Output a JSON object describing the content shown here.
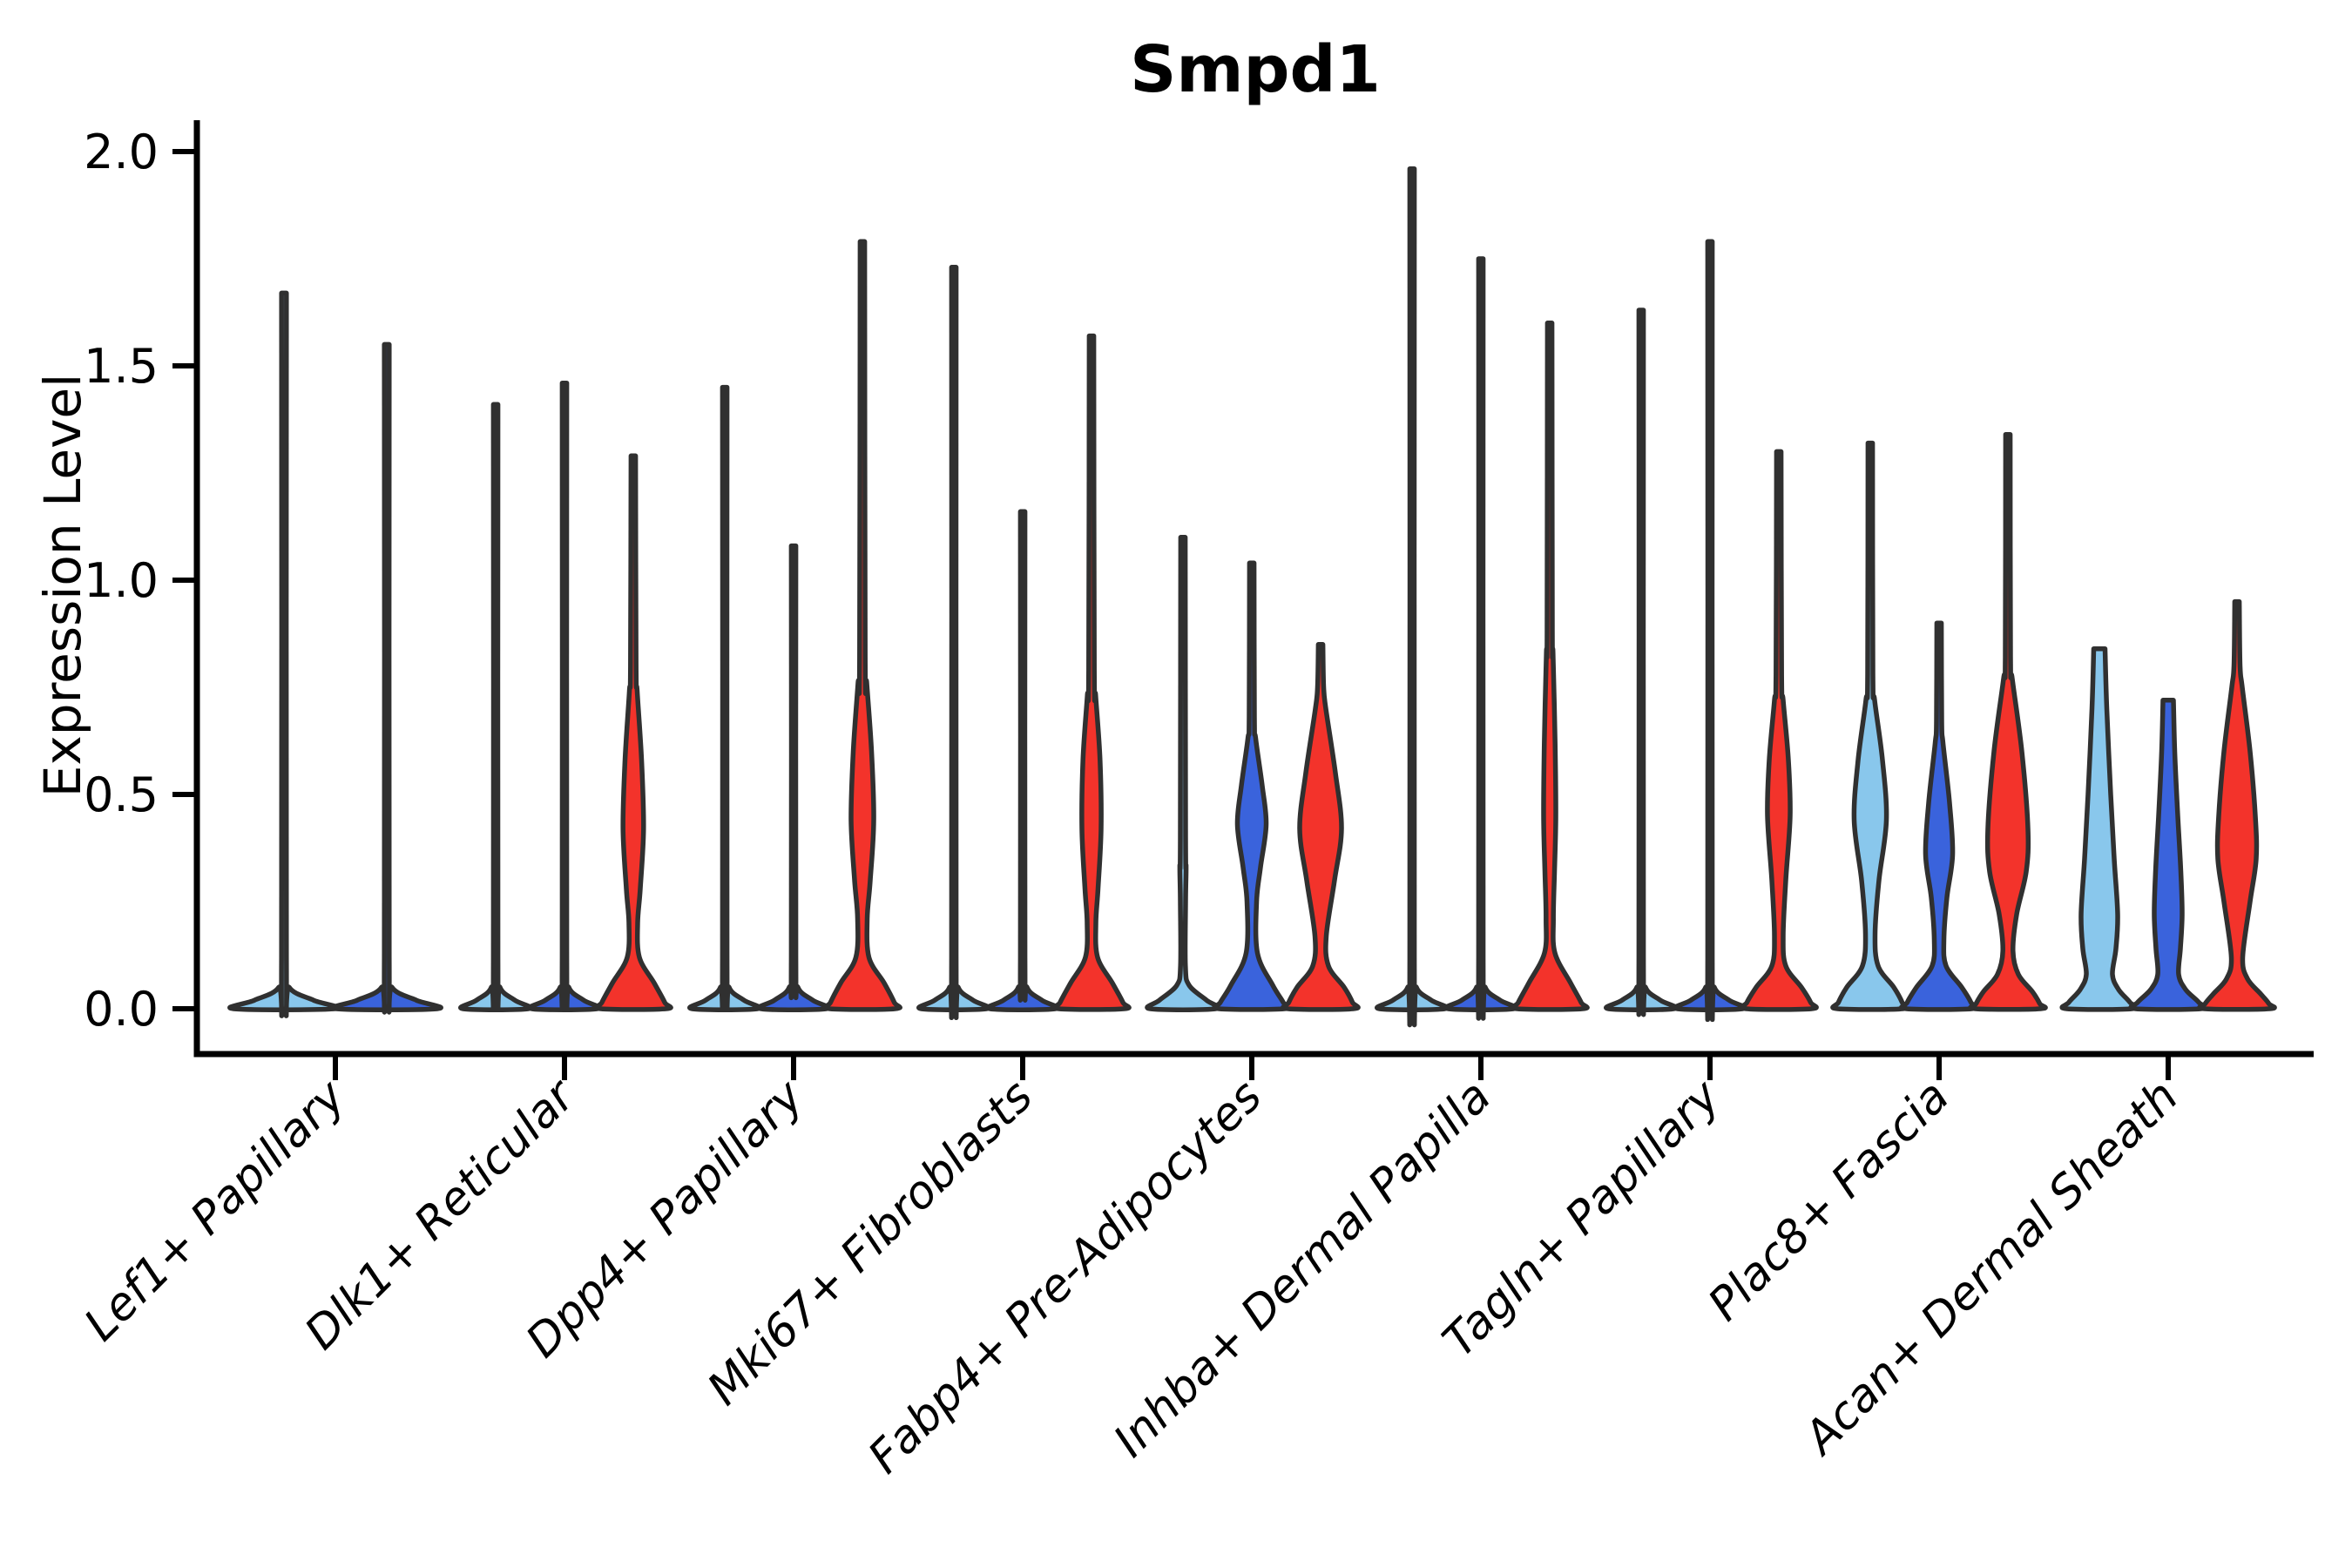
{
  "chart_data": {
    "type": "violin",
    "title": "Smpd1",
    "ylabel": "Expression Level",
    "ylim": [
      0.0,
      2.05
    ],
    "yticks": [
      0.0,
      0.5,
      1.0,
      1.5,
      2.0
    ],
    "ytick_labels": [
      "0.0",
      "0.5",
      "1.0",
      "1.5",
      "2.0"
    ],
    "grid": "off",
    "legend": "none",
    "categories": [
      "Lef1+ Papillary",
      "Dlk1+ Reticular",
      "Dpp4+ Papillary",
      "Mki67+ Fibroblasts",
      "Fabp4+ Pre-Adipocytes",
      "Inhba+ Dermal Papilla",
      "Tagln+ Papillary",
      "Plac8+ Fascia",
      "Acan+ Dermal Sheath"
    ],
    "split_colors": {
      "light-blue": "#89C7EC",
      "blue": "#3A63DC",
      "red": "#F3332B"
    },
    "outline_color": "#303030",
    "axis_color": "#000000",
    "violins": [
      {
        "cat": 0,
        "split": "light-blue",
        "max": 1.67,
        "profile": [
          [
            1.67,
            2.8
          ],
          [
            0.12,
            2.8
          ],
          [
            0.05,
            6
          ],
          [
            0.02,
            34
          ],
          [
            0,
            58
          ]
        ]
      },
      {
        "cat": 0,
        "split": "blue",
        "max": 1.55,
        "profile": [
          [
            1.55,
            2.8
          ],
          [
            0.12,
            2.8
          ],
          [
            0.05,
            6
          ],
          [
            0.02,
            34
          ],
          [
            0,
            58
          ]
        ]
      },
      {
        "cat": 1,
        "split": "light-blue",
        "max": 1.41,
        "profile": [
          [
            1.41,
            2.6
          ],
          [
            0.12,
            2.6
          ],
          [
            0.05,
            5
          ],
          [
            0.02,
            22
          ],
          [
            0,
            37.5
          ]
        ]
      },
      {
        "cat": 1,
        "split": "blue",
        "max": 1.46,
        "profile": [
          [
            1.46,
            2.6
          ],
          [
            0.12,
            2.6
          ],
          [
            0.05,
            5
          ],
          [
            0.02,
            22
          ],
          [
            0,
            37.5
          ]
        ]
      },
      {
        "cat": 1,
        "split": "red",
        "max": 1.29,
        "profile": [
          [
            1.29,
            2.6
          ],
          [
            0.8,
            3.2
          ],
          [
            0.74,
            4.5
          ],
          [
            0.58,
            9.5
          ],
          [
            0.42,
            11.8
          ],
          [
            0.28,
            8
          ],
          [
            0.2,
            5
          ],
          [
            0.12,
            7
          ],
          [
            0.06,
            24
          ],
          [
            0.015,
            36
          ],
          [
            0,
            37.5
          ]
        ]
      },
      {
        "cat": 2,
        "split": "light-blue",
        "max": 1.45,
        "profile": [
          [
            1.45,
            2.6
          ],
          [
            0.12,
            2.6
          ],
          [
            0.05,
            5
          ],
          [
            0.02,
            22
          ],
          [
            0,
            37.5
          ]
        ]
      },
      {
        "cat": 2,
        "split": "blue",
        "max": 1.08,
        "profile": [
          [
            1.08,
            2.6
          ],
          [
            0.12,
            2.6
          ],
          [
            0.05,
            5
          ],
          [
            0.02,
            22
          ],
          [
            0,
            37.5
          ]
        ]
      },
      {
        "cat": 2,
        "split": "red",
        "max": 1.79,
        "profile": [
          [
            1.79,
            2.6
          ],
          [
            0.82,
            3.2
          ],
          [
            0.76,
            5
          ],
          [
            0.6,
            10.5
          ],
          [
            0.44,
            13
          ],
          [
            0.3,
            9
          ],
          [
            0.21,
            5.5
          ],
          [
            0.12,
            7.5
          ],
          [
            0.06,
            25
          ],
          [
            0.015,
            36.5
          ],
          [
            0,
            37.5
          ]
        ]
      },
      {
        "cat": 3,
        "split": "light-blue",
        "max": 1.73,
        "profile": [
          [
            1.73,
            2.6
          ],
          [
            0.12,
            2.6
          ],
          [
            0.05,
            5
          ],
          [
            0.02,
            22
          ],
          [
            0,
            37.5
          ]
        ]
      },
      {
        "cat": 3,
        "split": "blue",
        "max": 1.16,
        "profile": [
          [
            1.16,
            2.6
          ],
          [
            0.12,
            2.6
          ],
          [
            0.05,
            5
          ],
          [
            0.02,
            22
          ],
          [
            0,
            37.5
          ]
        ]
      },
      {
        "cat": 3,
        "split": "red",
        "max": 1.57,
        "profile": [
          [
            1.57,
            2.6
          ],
          [
            0.79,
            3.2
          ],
          [
            0.73,
            4.8
          ],
          [
            0.58,
            9.8
          ],
          [
            0.42,
            11
          ],
          [
            0.28,
            7.5
          ],
          [
            0.2,
            5
          ],
          [
            0.12,
            7
          ],
          [
            0.06,
            24
          ],
          [
            0.015,
            36
          ],
          [
            0,
            37.5
          ]
        ]
      },
      {
        "cat": 4,
        "split": "light-blue",
        "max": 1.1,
        "profile": [
          [
            1.1,
            2.6
          ],
          [
            0.4,
            3.0
          ],
          [
            0.33,
            3.6
          ],
          [
            0.25,
            3.0
          ],
          [
            0.1,
            2.8
          ],
          [
            0.055,
            7
          ],
          [
            0.02,
            27
          ],
          [
            0,
            37.5
          ]
        ]
      },
      {
        "cat": 4,
        "split": "blue",
        "max": 1.04,
        "profile": [
          [
            1.04,
            2.6
          ],
          [
            0.68,
            3.0
          ],
          [
            0.63,
            4.5
          ],
          [
            0.52,
            12
          ],
          [
            0.43,
            16.5
          ],
          [
            0.33,
            10
          ],
          [
            0.25,
            5.5
          ],
          [
            0.13,
            6.5
          ],
          [
            0.055,
            24
          ],
          [
            0.015,
            36
          ],
          [
            0,
            37.5
          ]
        ]
      },
      {
        "cat": 4,
        "split": "red",
        "max": 0.85,
        "profile": [
          [
            0.85,
            2.6
          ],
          [
            0.75,
            3.5
          ],
          [
            0.7,
            6
          ],
          [
            0.55,
            17
          ],
          [
            0.42,
            24
          ],
          [
            0.3,
            16
          ],
          [
            0.17,
            6.5
          ],
          [
            0.1,
            9
          ],
          [
            0.05,
            27
          ],
          [
            0.015,
            36.5
          ],
          [
            0,
            37.5
          ]
        ]
      },
      {
        "cat": 5,
        "split": "light-blue",
        "max": 1.96,
        "profile": [
          [
            1.96,
            2.6
          ],
          [
            0.12,
            2.6
          ],
          [
            0.05,
            5
          ],
          [
            0.02,
            22
          ],
          [
            0,
            37.5
          ]
        ]
      },
      {
        "cat": 5,
        "split": "blue",
        "max": 1.75,
        "profile": [
          [
            1.75,
            2.6
          ],
          [
            0.12,
            2.6
          ],
          [
            0.05,
            5
          ],
          [
            0.02,
            22
          ],
          [
            0,
            37.5
          ]
        ]
      },
      {
        "cat": 5,
        "split": "red",
        "max": 1.6,
        "profile": [
          [
            1.6,
            2.6
          ],
          [
            0.88,
            3.0
          ],
          [
            0.83,
            3.8
          ],
          [
            0.62,
            6.2
          ],
          [
            0.45,
            7
          ],
          [
            0.32,
            5.5
          ],
          [
            0.21,
            4.2
          ],
          [
            0.13,
            6
          ],
          [
            0.06,
            24
          ],
          [
            0.015,
            36
          ],
          [
            0,
            37.5
          ]
        ]
      },
      {
        "cat": 6,
        "split": "light-blue",
        "max": 1.63,
        "profile": [
          [
            1.63,
            2.6
          ],
          [
            0.12,
            2.6
          ],
          [
            0.05,
            5
          ],
          [
            0.02,
            22
          ],
          [
            0,
            37.5
          ]
        ]
      },
      {
        "cat": 6,
        "split": "blue",
        "max": 1.79,
        "profile": [
          [
            1.79,
            2.6
          ],
          [
            0.12,
            2.6
          ],
          [
            0.05,
            5
          ],
          [
            0.02,
            22
          ],
          [
            0,
            37.5
          ]
        ]
      },
      {
        "cat": 6,
        "split": "red",
        "max": 1.3,
        "profile": [
          [
            1.3,
            2.6
          ],
          [
            0.78,
            3.2
          ],
          [
            0.72,
            5
          ],
          [
            0.58,
            11
          ],
          [
            0.45,
            13
          ],
          [
            0.3,
            8
          ],
          [
            0.17,
            5
          ],
          [
            0.1,
            8
          ],
          [
            0.05,
            26
          ],
          [
            0.015,
            36.5
          ],
          [
            0,
            37.5
          ]
        ]
      },
      {
        "cat": 7,
        "split": "light-blue",
        "max": 1.32,
        "profile": [
          [
            1.32,
            2.6
          ],
          [
            0.78,
            3.0
          ],
          [
            0.72,
            5
          ],
          [
            0.58,
            14
          ],
          [
            0.44,
            18.5
          ],
          [
            0.3,
            10
          ],
          [
            0.175,
            5.5
          ],
          [
            0.1,
            9
          ],
          [
            0.05,
            27
          ],
          [
            0.015,
            36.5
          ],
          [
            0,
            37.5
          ]
        ]
      },
      {
        "cat": 7,
        "split": "blue",
        "max": 0.9,
        "profile": [
          [
            0.9,
            2.6
          ],
          [
            0.67,
            3.0
          ],
          [
            0.62,
            4.5
          ],
          [
            0.48,
            12
          ],
          [
            0.36,
            15.5
          ],
          [
            0.26,
            9
          ],
          [
            0.16,
            5.5
          ],
          [
            0.1,
            8
          ],
          [
            0.05,
            26
          ],
          [
            0.015,
            36.5
          ],
          [
            0,
            37.5
          ]
        ]
      },
      {
        "cat": 7,
        "split": "red",
        "max": 1.34,
        "profile": [
          [
            1.34,
            2.6
          ],
          [
            0.82,
            3.0
          ],
          [
            0.77,
            5
          ],
          [
            0.6,
            16
          ],
          [
            0.42,
            23
          ],
          [
            0.32,
            21
          ],
          [
            0.22,
            10
          ],
          [
            0.135,
            5.8
          ],
          [
            0.08,
            12
          ],
          [
            0.04,
            28
          ],
          [
            0.012,
            36.5
          ],
          [
            0,
            37.5
          ]
        ]
      },
      {
        "cat": 8,
        "split": "light-blue",
        "max": 0.84,
        "profile": [
          [
            0.84,
            6.5
          ],
          [
            0.7,
            8.5
          ],
          [
            0.5,
            13
          ],
          [
            0.35,
            17
          ],
          [
            0.22,
            21
          ],
          [
            0.14,
            19
          ],
          [
            0.08,
            15
          ],
          [
            0.045,
            22
          ],
          [
            0.015,
            35
          ],
          [
            0,
            37.5
          ]
        ]
      },
      {
        "cat": 8,
        "split": "blue",
        "max": 0.72,
        "profile": [
          [
            0.72,
            6
          ],
          [
            0.6,
            7.5
          ],
          [
            0.45,
            11
          ],
          [
            0.32,
            14.5
          ],
          [
            0.22,
            16
          ],
          [
            0.14,
            14
          ],
          [
            0.08,
            12
          ],
          [
            0.045,
            20
          ],
          [
            0.015,
            35
          ],
          [
            0,
            37.5
          ]
        ]
      },
      {
        "cat": 8,
        "split": "red",
        "max": 0.95,
        "profile": [
          [
            0.95,
            2.6
          ],
          [
            0.8,
            3.5
          ],
          [
            0.75,
            6
          ],
          [
            0.6,
            15
          ],
          [
            0.45,
            21
          ],
          [
            0.35,
            22
          ],
          [
            0.25,
            15
          ],
          [
            0.12,
            6.5
          ],
          [
            0.07,
            12
          ],
          [
            0.035,
            27
          ],
          [
            0.012,
            36.5
          ],
          [
            0,
            37.5
          ]
        ]
      }
    ]
  }
}
